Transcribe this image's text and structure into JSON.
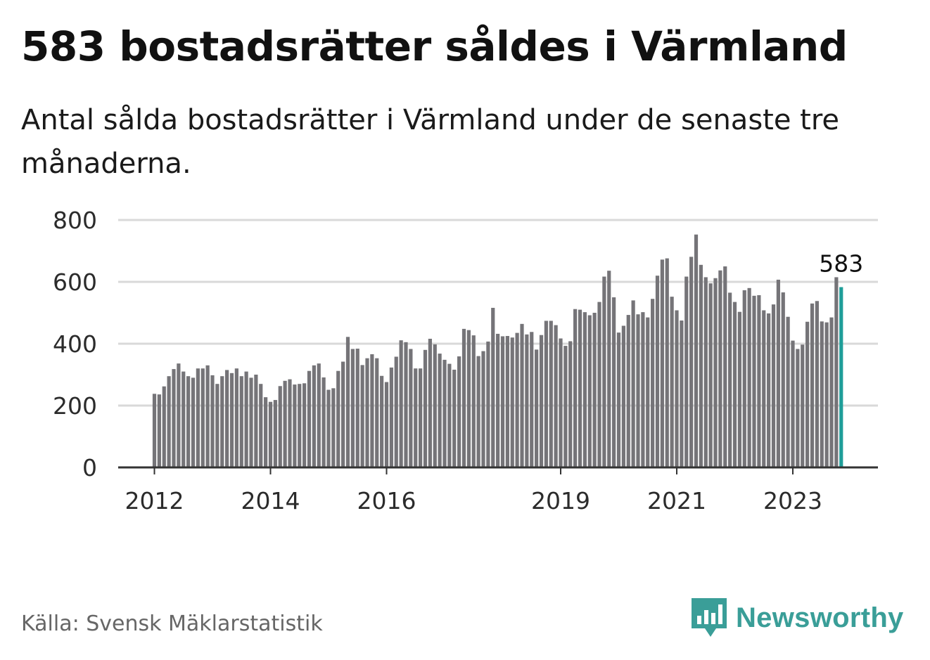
{
  "title": "583 bostadsrätter såldes i Värmland",
  "subtitle": "Antal sålda bostadsrätter i Värmland under de senaste tre månaderna.",
  "source": "Källa: Svensk Mäklarstatistik",
  "logo": {
    "name": "Newsworthy",
    "icon": "bar-chart-speech-icon"
  },
  "colors": {
    "bar": "#757478",
    "highlight": "#1f9e99",
    "grid": "#d9d9d9",
    "axis": "#333333",
    "brand": "#3a9e98"
  },
  "chart_data": {
    "type": "bar",
    "x_start": "2012-01",
    "x_ticks": [
      {
        "label": "2012",
        "month": "2012-01"
      },
      {
        "label": "2014",
        "month": "2014-01"
      },
      {
        "label": "2016",
        "month": "2016-01"
      },
      {
        "label": "2019",
        "month": "2019-01"
      },
      {
        "label": "2021",
        "month": "2021-01"
      },
      {
        "label": "2023",
        "month": "2023-01"
      }
    ],
    "y_ticks": [
      0,
      200,
      400,
      600,
      800
    ],
    "ylim": [
      0,
      800
    ],
    "grid": true,
    "highlight_label": "583",
    "values": [
      238,
      236,
      262,
      295,
      318,
      336,
      310,
      295,
      290,
      320,
      320,
      330,
      298,
      270,
      295,
      315,
      305,
      320,
      295,
      310,
      290,
      300,
      270,
      227,
      212,
      218,
      263,
      280,
      285,
      268,
      270,
      272,
      312,
      330,
      336,
      291,
      251,
      256,
      312,
      342,
      422,
      383,
      384,
      331,
      353,
      366,
      353,
      296,
      276,
      323,
      358,
      411,
      405,
      383,
      320,
      320,
      380,
      416,
      398,
      368,
      348,
      335,
      316,
      359,
      448,
      444,
      427,
      360,
      376,
      407,
      516,
      432,
      424,
      425,
      420,
      435,
      464,
      430,
      438,
      381,
      428,
      474,
      474,
      460,
      417,
      393,
      408,
      512,
      510,
      502,
      492,
      500,
      535,
      617,
      636,
      550,
      436,
      458,
      493,
      540,
      495,
      502,
      485,
      545,
      620,
      672,
      676,
      552,
      508,
      475,
      617,
      681,
      753,
      655,
      615,
      595,
      612,
      637,
      650,
      565,
      535,
      503,
      573,
      580,
      555,
      557,
      508,
      498,
      527,
      607,
      566,
      487,
      410,
      383,
      397,
      471,
      530,
      538,
      472,
      469,
      485,
      615,
      583
    ]
  }
}
